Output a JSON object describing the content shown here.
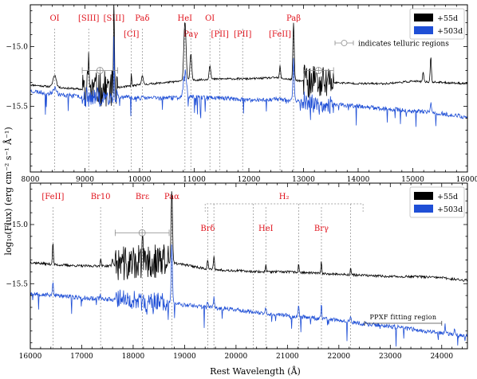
{
  "figure": {
    "ylabel": "log₁₀(Flux) (erg cm⁻² s⁻¹ Å⁻¹)",
    "xlabel": "Rest Wavelength (Å)"
  },
  "colors": {
    "epoch1": "#000000",
    "epoch2": "#1f4fd6",
    "line_label": "#e0121b",
    "grid_line": "#8c8c8c"
  },
  "chart_data": [
    {
      "type": "line",
      "panel": "top",
      "xlim": [
        8000,
        16000
      ],
      "ylim": [
        -16.05,
        -14.65
      ],
      "xticks": [
        8000,
        9000,
        10000,
        11000,
        12000,
        13000,
        14000,
        15000,
        16000
      ],
      "yticks": [
        -15.0,
        -15.5
      ],
      "ytick_labels": [
        "−15.0",
        "−15.5"
      ],
      "legend": {
        "position": "top-right",
        "entries": [
          "+55d",
          "+503d"
        ]
      },
      "series": [
        {
          "name": "+55d",
          "color": "#000000",
          "continuum": [
            [
              8000,
              -15.32
            ],
            [
              8450,
              -15.34
            ],
            [
              9000,
              -15.36
            ],
            [
              9500,
              -15.35
            ],
            [
              10000,
              -15.32
            ],
            [
              10500,
              -15.3
            ],
            [
              11000,
              -15.28
            ],
            [
              11500,
              -15.27
            ],
            [
              12000,
              -15.27
            ],
            [
              12500,
              -15.26
            ],
            [
              13000,
              -15.29
            ],
            [
              13500,
              -15.3
            ],
            [
              14000,
              -15.31
            ],
            [
              14500,
              -15.31
            ],
            [
              15000,
              -15.29
            ],
            [
              15500,
              -15.3
            ],
            [
              16000,
              -15.31
            ]
          ],
          "lines": [
            [
              8446,
              0.1,
              30
            ],
            [
              9069,
              0.28,
              10
            ],
            [
              9531,
              0.78,
              8
            ],
            [
              9850,
              0.1,
              6
            ],
            [
              10049,
              0.08,
              15
            ],
            [
              10830,
              0.5,
              20
            ],
            [
              10938,
              0.22,
              15
            ],
            [
              11287,
              0.12,
              15
            ],
            [
              12570,
              0.1,
              10
            ],
            [
              12818,
              0.48,
              12
            ],
            [
              15330,
              0.22,
              10
            ],
            [
              15190,
              0.08,
              10
            ]
          ],
          "noise": 0.008,
          "seed": 11
        },
        {
          "name": "+503d",
          "color": "#1f4fd6",
          "continuum": [
            [
              8000,
              -15.37
            ],
            [
              8450,
              -15.4
            ],
            [
              9000,
              -15.42
            ],
            [
              9500,
              -15.42
            ],
            [
              10000,
              -15.43
            ],
            [
              10500,
              -15.43
            ],
            [
              11000,
              -15.42
            ],
            [
              11500,
              -15.43
            ],
            [
              12000,
              -15.45
            ],
            [
              12500,
              -15.44
            ],
            [
              13000,
              -15.46
            ],
            [
              13500,
              -15.48
            ],
            [
              14000,
              -15.5
            ],
            [
              14500,
              -15.52
            ],
            [
              15000,
              -15.54
            ],
            [
              15500,
              -15.56
            ],
            [
              16000,
              -15.59
            ]
          ],
          "lines": [
            [
              8446,
              0.06,
              30
            ],
            [
              9531,
              0.5,
              6
            ],
            [
              10830,
              0.25,
              25
            ],
            [
              12818,
              0.35,
              12
            ],
            [
              15330,
              0.08,
              10
            ]
          ],
          "noise": 0.018,
          "seed": 23
        }
      ],
      "line_ids": [
        {
          "label": "OI",
          "x": 8446
        },
        {
          "label": "[SIII]",
          "x": 9069
        },
        {
          "label": "[SIII]",
          "x": 9531
        },
        {
          "label": "[CI]",
          "x": 9850
        },
        {
          "label": "Paδ",
          "x": 10049
        },
        {
          "label": "HeI",
          "x": 10830
        },
        {
          "label": "Paγ",
          "x": 10938
        },
        {
          "label": "OI",
          "x": 11287
        },
        {
          "label": "[PII]",
          "x": 11470
        },
        {
          "label": "[PII]",
          "x": 11886
        },
        {
          "label": "[FeII]",
          "x": 12570
        },
        {
          "label": "Paβ",
          "x": 12818
        }
      ],
      "telluric": [
        {
          "x0": 8950,
          "x1": 9600,
          "y": -15.2
        },
        {
          "x0": 13000,
          "x1": 13550,
          "y": -15.2
        }
      ],
      "telluric_note": "indicates telluric regions"
    },
    {
      "type": "line",
      "panel": "bottom",
      "xlim": [
        16000,
        24500
      ],
      "ylim": [
        -16.05,
        -14.65
      ],
      "xticks": [
        16000,
        17000,
        18000,
        19000,
        20000,
        21000,
        22000,
        23000,
        24000
      ],
      "yticks": [
        -15.0,
        -15.5
      ],
      "ytick_labels": [
        "−15.0",
        "−15.5"
      ],
      "legend": {
        "position": "top-right",
        "entries": [
          "+55d",
          "+503d"
        ]
      },
      "series": [
        {
          "name": "+55d",
          "color": "#000000",
          "continuum": [
            [
              16000,
              -15.32
            ],
            [
              16500,
              -15.34
            ],
            [
              17000,
              -15.35
            ],
            [
              17500,
              -15.35
            ],
            [
              18000,
              -15.33
            ],
            [
              18500,
              -15.31
            ],
            [
              19000,
              -15.34
            ],
            [
              19500,
              -15.38
            ],
            [
              20000,
              -15.39
            ],
            [
              20500,
              -15.4
            ],
            [
              21000,
              -15.4
            ],
            [
              21500,
              -15.41
            ],
            [
              22000,
              -15.42
            ],
            [
              22500,
              -15.43
            ],
            [
              23000,
              -15.44
            ],
            [
              23500,
              -15.44
            ],
            [
              24000,
              -15.45
            ],
            [
              24400,
              -15.47
            ]
          ],
          "lines": [
            [
              16440,
              0.18,
              10
            ],
            [
              17367,
              0.06,
              10
            ],
            [
              17600,
              0.06,
              10
            ],
            [
              18179,
              0.14,
              12
            ],
            [
              18751,
              0.62,
              14
            ],
            [
              19450,
              0.08,
              10
            ],
            [
              19570,
              0.12,
              10
            ],
            [
              20580,
              0.06,
              10
            ],
            [
              21218,
              0.08,
              8
            ],
            [
              21661,
              0.1,
              8
            ],
            [
              22230,
              0.06,
              8
            ]
          ],
          "noise": 0.01,
          "seed": 37
        },
        {
          "name": "+503d",
          "color": "#1f4fd6",
          "continuum": [
            [
              16000,
              -15.58
            ],
            [
              16500,
              -15.6
            ],
            [
              17000,
              -15.62
            ],
            [
              17500,
              -15.63
            ],
            [
              18000,
              -15.64
            ],
            [
              18500,
              -15.65
            ],
            [
              19000,
              -15.68
            ],
            [
              19500,
              -15.7
            ],
            [
              20000,
              -15.72
            ],
            [
              20500,
              -15.75
            ],
            [
              21000,
              -15.77
            ],
            [
              21500,
              -15.79
            ],
            [
              22000,
              -15.81
            ],
            [
              22500,
              -15.84
            ],
            [
              23000,
              -15.86
            ],
            [
              23500,
              -15.89
            ],
            [
              24000,
              -15.92
            ],
            [
              24400,
              -15.94
            ]
          ],
          "lines": [
            [
              16440,
              0.12,
              10
            ],
            [
              17367,
              0.04,
              10
            ],
            [
              18179,
              0.07,
              12
            ],
            [
              18751,
              0.5,
              12
            ],
            [
              19450,
              0.05,
              10
            ],
            [
              19570,
              0.08,
              10
            ],
            [
              20580,
              0.05,
              10
            ],
            [
              21218,
              0.1,
              8
            ],
            [
              21661,
              0.12,
              8
            ],
            [
              22230,
              0.05,
              8
            ],
            [
              24065,
              0.1,
              8
            ],
            [
              24250,
              0.06,
              8
            ]
          ],
          "noise": 0.018,
          "seed": 53
        }
      ],
      "line_ids": [
        {
          "label": "[FeII]",
          "x": 16440
        },
        {
          "label": "Br10",
          "x": 17367
        },
        {
          "label": "Brε",
          "x": 18179
        },
        {
          "label": "Paα",
          "x": 18751
        },
        {
          "label": "Brδ",
          "x": 19450
        },
        {
          "label": "HeI",
          "x": 20580
        },
        {
          "label": "Brγ",
          "x": 21661
        }
      ],
      "h2": {
        "label": "H₂",
        "lines": [
          19570,
          20338,
          21218,
          22230
        ],
        "x0": 19400,
        "x1": 22470
      },
      "telluric": [
        {
          "x0": 17650,
          "x1": 18700,
          "y": -15.07
        }
      ],
      "ppxf": {
        "label": "PPXF fitting region",
        "x0": 22500,
        "x1": 24000
      }
    }
  ]
}
